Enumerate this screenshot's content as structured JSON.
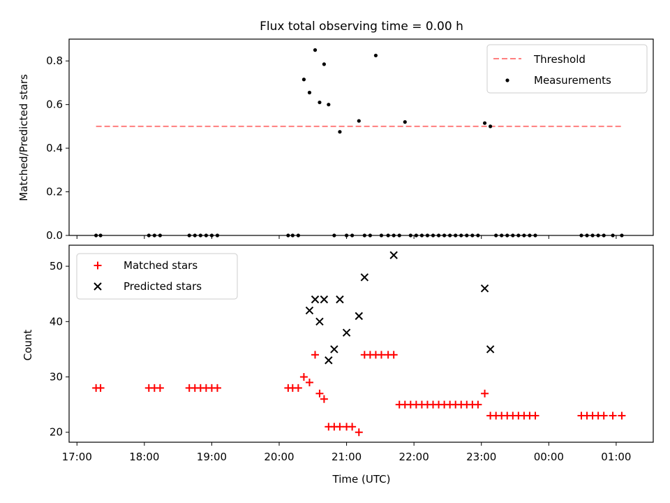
{
  "chart_data": [
    {
      "type": "scatter",
      "title": "Flux total observing time = 0.00 h",
      "xlabel": "",
      "ylabel": "Matched/Predicted stars",
      "ylim": [
        0,
        0.9
      ],
      "yticks": [
        0.0,
        0.2,
        0.4,
        0.6,
        0.8
      ],
      "ytick_labels": [
        "0.0",
        "0.2",
        "0.4",
        "0.6",
        "0.8"
      ],
      "legend_position": "top-right",
      "threshold": {
        "name": "Threshold",
        "value": 0.5,
        "x_start": "17:17",
        "x_end": "01:05",
        "color": "#ff7f7f"
      },
      "series": [
        {
          "name": "Measurements",
          "color": "#000000",
          "x": [
            "17:17",
            "17:21",
            "18:04",
            "18:09",
            "18:14",
            "18:40",
            "18:45",
            "18:50",
            "18:55",
            "19:00",
            "19:05",
            "20:08",
            "20:12",
            "20:17",
            "20:22",
            "20:27",
            "20:32",
            "20:36",
            "20:40",
            "20:44",
            "20:49",
            "20:54",
            "21:00",
            "21:05",
            "21:11",
            "21:16",
            "21:21",
            "21:26",
            "21:31",
            "21:37",
            "21:42",
            "21:47",
            "21:52",
            "21:57",
            "22:02",
            "22:07",
            "22:12",
            "22:17",
            "22:22",
            "22:27",
            "22:32",
            "22:37",
            "22:42",
            "22:47",
            "22:52",
            "22:57",
            "23:03",
            "23:08",
            "23:13",
            "23:18",
            "23:23",
            "23:28",
            "23:33",
            "23:38",
            "23:43",
            "23:48",
            "00:29",
            "00:34",
            "00:39",
            "00:44",
            "00:49",
            "00:57",
            "01:05"
          ],
          "y": [
            0,
            0,
            0,
            0,
            0,
            0,
            0,
            0,
            0,
            0,
            0,
            0,
            0,
            0,
            0.715,
            0.655,
            0.85,
            0.61,
            0.785,
            0.6,
            0,
            0.475,
            0,
            0,
            0.525,
            0,
            0,
            0.825,
            0,
            0,
            0,
            0,
            0.52,
            0,
            0,
            0,
            0,
            0,
            0,
            0,
            0,
            0,
            0,
            0,
            0,
            0,
            0.515,
            0.5,
            0,
            0,
            0,
            0,
            0,
            0,
            0,
            0,
            0,
            0,
            0,
            0,
            0,
            0,
            0
          ]
        }
      ]
    },
    {
      "type": "scatter",
      "title": "",
      "xlabel": "Time (UTC)",
      "ylabel": "Count",
      "ylim": [
        18.2,
        53.8
      ],
      "yticks": [
        20,
        30,
        40,
        50
      ],
      "ytick_labels": [
        "20",
        "30",
        "40",
        "50"
      ],
      "xticks": [
        "17:00",
        "18:00",
        "19:00",
        "20:00",
        "21:00",
        "22:00",
        "23:00",
        "00:00",
        "01:00"
      ],
      "xlim_minutes": [
        1013,
        1533
      ],
      "legend_position": "top-left",
      "series": [
        {
          "name": "Matched stars",
          "marker": "+",
          "color": "#ff0000",
          "x": [
            "17:17",
            "17:21",
            "18:04",
            "18:09",
            "18:14",
            "18:40",
            "18:45",
            "18:50",
            "18:55",
            "19:00",
            "19:05",
            "20:08",
            "20:12",
            "20:17",
            "20:22",
            "20:27",
            "20:32",
            "20:36",
            "20:40",
            "20:44",
            "20:49",
            "20:54",
            "21:00",
            "21:05",
            "21:11",
            "21:16",
            "21:21",
            "21:26",
            "21:31",
            "21:37",
            "21:42",
            "21:47",
            "21:52",
            "21:57",
            "22:02",
            "22:07",
            "22:12",
            "22:17",
            "22:22",
            "22:27",
            "22:32",
            "22:37",
            "22:42",
            "22:47",
            "22:52",
            "22:57",
            "23:03",
            "23:08",
            "23:13",
            "23:18",
            "23:23",
            "23:28",
            "23:33",
            "23:38",
            "23:43",
            "23:48",
            "00:29",
            "00:34",
            "00:39",
            "00:44",
            "00:49",
            "00:57",
            "01:05"
          ],
          "y": [
            28,
            28,
            28,
            28,
            28,
            28,
            28,
            28,
            28,
            28,
            28,
            28,
            28,
            28,
            30,
            29,
            34,
            27,
            26,
            21,
            21,
            21,
            21,
            21,
            20,
            34,
            34,
            34,
            34,
            34,
            34,
            25,
            25,
            25,
            25,
            25,
            25,
            25,
            25,
            25,
            25,
            25,
            25,
            25,
            25,
            25,
            27,
            23,
            23,
            23,
            23,
            23,
            23,
            23,
            23,
            23,
            23,
            23,
            23,
            23,
            23,
            23,
            23
          ]
        },
        {
          "name": "Predicted stars",
          "marker": "x",
          "color": "#000000",
          "x": [
            "20:27",
            "20:32",
            "20:36",
            "20:40",
            "20:44",
            "20:49",
            "20:54",
            "21:00",
            "21:11",
            "21:16",
            "21:42",
            "23:03",
            "23:08"
          ],
          "y": [
            42,
            44,
            40,
            44,
            33,
            35,
            44,
            38,
            41,
            48,
            52,
            46,
            35
          ]
        }
      ]
    }
  ]
}
